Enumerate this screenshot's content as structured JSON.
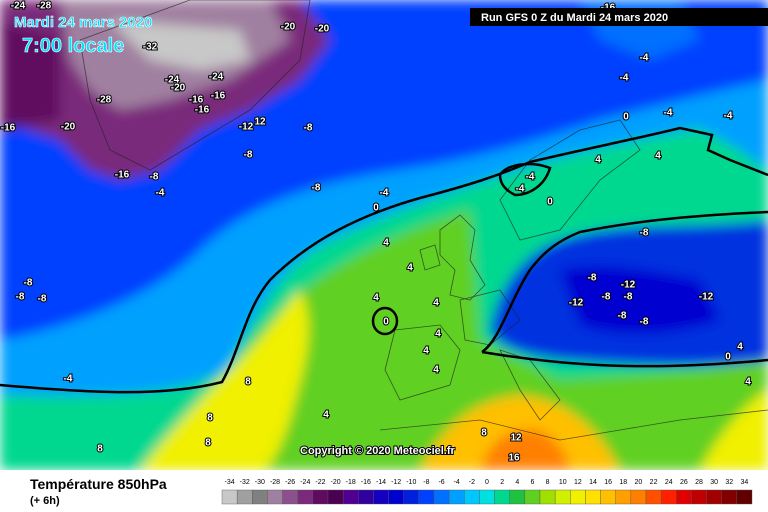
{
  "header": {
    "date": "Mardi 24 mars 2020",
    "time": "7:00 locale",
    "run": "Run GFS 0 Z du Mardi 24 mars 2020"
  },
  "footer": {
    "title": "Température 850hPa",
    "subtitle": "(+ 6h)",
    "copyright": "Copyright © 2020 Meteociel.fr"
  },
  "legend": {
    "values": [
      -34,
      -32,
      -30,
      -28,
      -26,
      -24,
      -22,
      -20,
      -18,
      -16,
      -14,
      -12,
      -10,
      -8,
      -6,
      -4,
      -2,
      0,
      2,
      4,
      6,
      8,
      10,
      12,
      14,
      16,
      18,
      20,
      22,
      24,
      26,
      28,
      30,
      32,
      34
    ],
    "colors": [
      "#c8c8c8",
      "#a0a0a0",
      "#808080",
      "#a080a0",
      "#8c508c",
      "#7a2a7a",
      "#600a60",
      "#4b0050",
      "#500090",
      "#3000a0",
      "#1400c0",
      "#0000d0",
      "#0020e0",
      "#0040ff",
      "#0070ff",
      "#00a0ff",
      "#00c8ff",
      "#00e0e0",
      "#00d890",
      "#20c040",
      "#60d020",
      "#a0e000",
      "#d0f000",
      "#f0f000",
      "#ffe000",
      "#ffc000",
      "#ffa000",
      "#ff8000",
      "#ff5000",
      "#ff2000",
      "#e00000",
      "#c00000",
      "#a00000",
      "#800000",
      "#600000"
    ]
  },
  "map": {
    "contour_labels": [
      -24,
      -28,
      -20,
      -20,
      -32,
      -24,
      -24,
      -20,
      -28,
      -16,
      -16,
      -16,
      -12,
      12,
      -8,
      -16,
      -20,
      -8,
      -16,
      -8,
      -4,
      -8,
      -4,
      0,
      4,
      4,
      4,
      0,
      4,
      4,
      4,
      4,
      -8,
      -8,
      -8,
      -4,
      8,
      8,
      8,
      8,
      4,
      8,
      12,
      16,
      -16,
      -4,
      -4,
      -4,
      0,
      -4,
      4,
      4,
      -4,
      -4,
      0,
      -8,
      -8,
      -12,
      -8,
      -8,
      -12,
      -8,
      -8,
      -12,
      4,
      0,
      4
    ]
  }
}
